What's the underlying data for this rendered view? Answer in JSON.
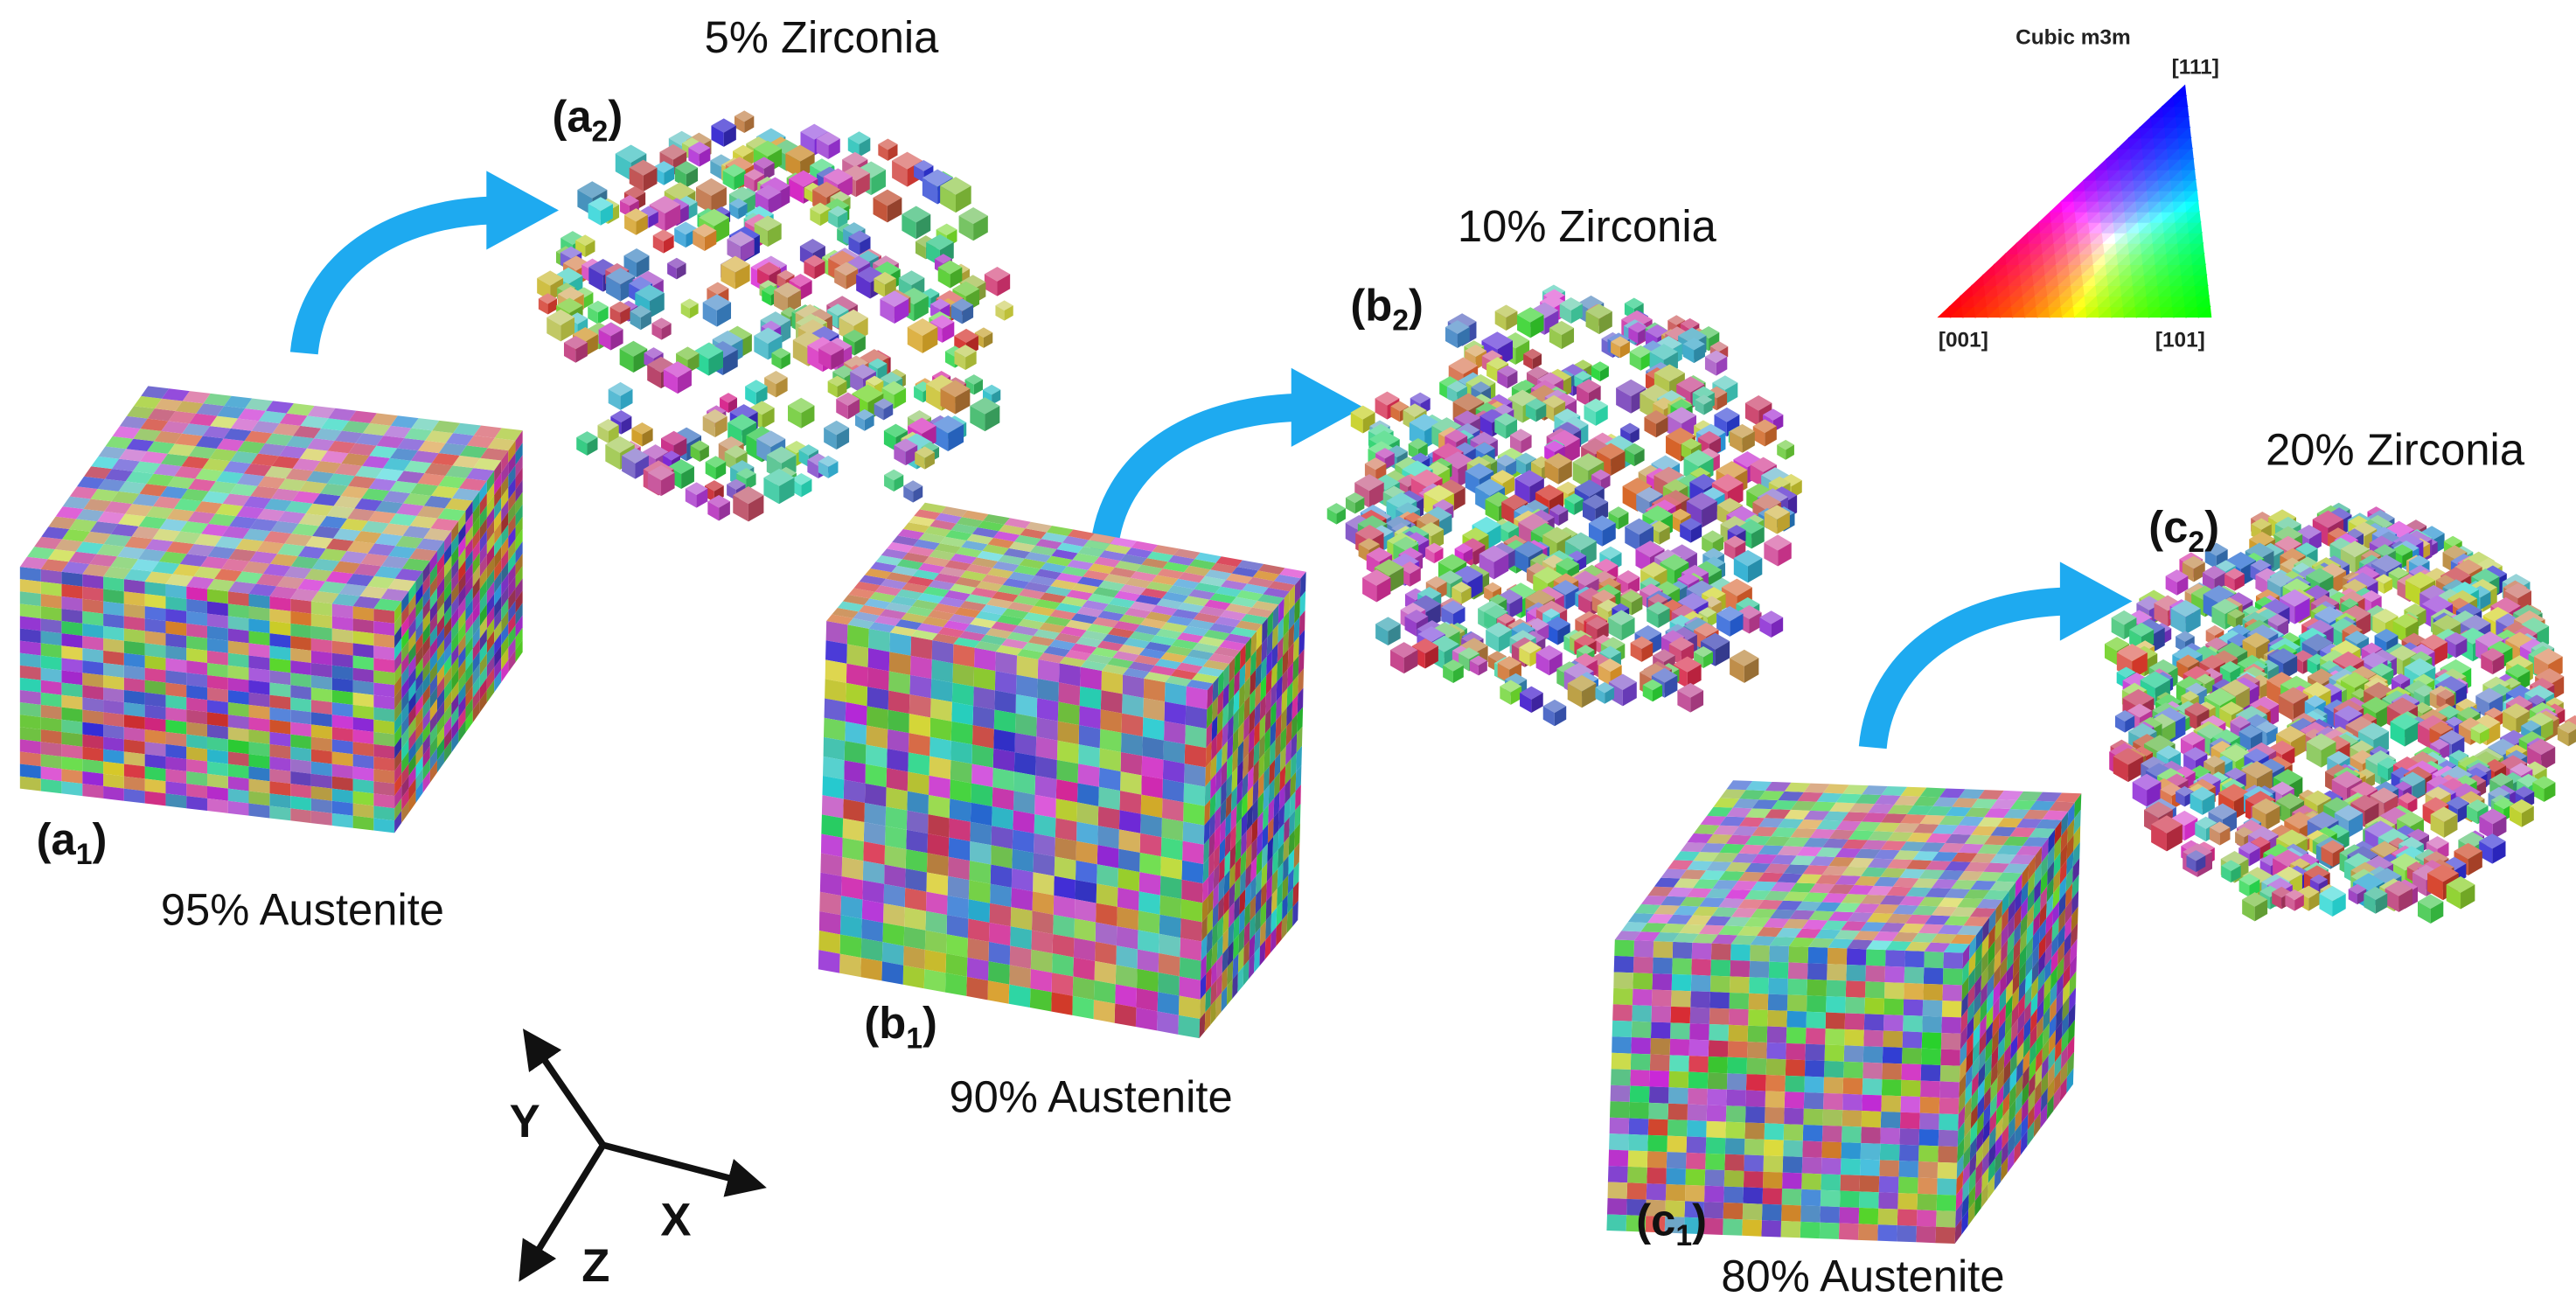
{
  "zirconia": [
    {
      "title": "5% Zirconia",
      "label": [
        "(a",
        "2",
        ")"
      ]
    },
    {
      "title": "10% Zirconia",
      "label": [
        "(b",
        "2",
        ")"
      ]
    },
    {
      "title": "20% Zirconia",
      "label": [
        "(c",
        "2",
        ")"
      ]
    }
  ],
  "austenite": [
    {
      "title": "95% Austenite",
      "label": [
        "(a",
        "1",
        ")"
      ]
    },
    {
      "title": "90% Austenite",
      "label": [
        "(b",
        "1",
        ")"
      ]
    },
    {
      "title": "80% Austenite",
      "label": [
        "(c",
        "1",
        ")"
      ]
    }
  ],
  "legend": {
    "title": "Cubic m3m",
    "corners": [
      "[111]",
      "[001]",
      "[101]"
    ]
  },
  "axes": [
    "Y",
    "X",
    "Z"
  ]
}
